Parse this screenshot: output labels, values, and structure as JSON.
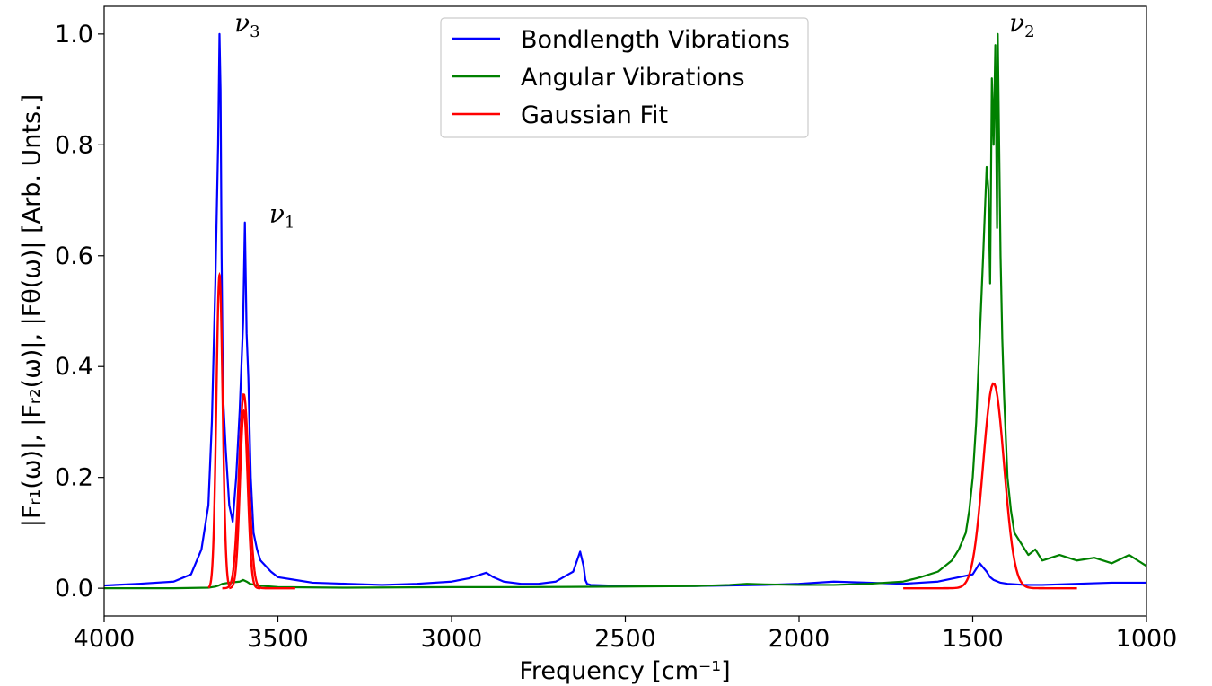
{
  "chart_data": {
    "type": "line",
    "xlabel": "Frequency [cm⁻¹]",
    "ylabel": "|Fᵣ₁(ω)|, |Fᵣ₂(ω)|, |Fθ(ω)|  [Arb. Unts.]",
    "xlim": [
      4000,
      1000
    ],
    "ylim": [
      -0.05,
      1.05
    ],
    "x_reversed": true,
    "x_ticks": [
      "4000",
      "3500",
      "3000",
      "2500",
      "2000",
      "1500",
      "1000"
    ],
    "y_ticks": [
      "0.0",
      "0.2",
      "0.4",
      "0.6",
      "0.8",
      "1.0"
    ],
    "grid": false,
    "legend_position": "top-center",
    "series": [
      {
        "name": "Bondlength Vibrations",
        "color": "#0000ff",
        "x": [
          4000,
          3900,
          3800,
          3750,
          3720,
          3700,
          3690,
          3680,
          3672,
          3668,
          3665,
          3662,
          3658,
          3650,
          3640,
          3630,
          3620,
          3610,
          3600,
          3595,
          3590,
          3585,
          3578,
          3570,
          3560,
          3550,
          3520,
          3500,
          3450,
          3400,
          3300,
          3200,
          3100,
          3000,
          2950,
          2900,
          2880,
          2850,
          2800,
          2750,
          2700,
          2650,
          2630,
          2620,
          2615,
          2610,
          2600,
          2550,
          2500,
          2400,
          2300,
          2200,
          2100,
          2000,
          1900,
          1800,
          1700,
          1600,
          1500,
          1480,
          1460,
          1450,
          1440,
          1420,
          1400,
          1350,
          1300,
          1200,
          1100,
          1000
        ],
        "y": [
          0.005,
          0.008,
          0.012,
          0.025,
          0.07,
          0.15,
          0.3,
          0.55,
          0.8,
          1.0,
          0.9,
          0.6,
          0.35,
          0.25,
          0.15,
          0.12,
          0.2,
          0.32,
          0.48,
          0.66,
          0.46,
          0.38,
          0.2,
          0.1,
          0.07,
          0.05,
          0.03,
          0.02,
          0.015,
          0.01,
          0.008,
          0.006,
          0.008,
          0.012,
          0.018,
          0.028,
          0.02,
          0.012,
          0.008,
          0.008,
          0.012,
          0.03,
          0.066,
          0.04,
          0.015,
          0.008,
          0.006,
          0.005,
          0.004,
          0.004,
          0.004,
          0.005,
          0.006,
          0.008,
          0.012,
          0.01,
          0.008,
          0.012,
          0.025,
          0.045,
          0.03,
          0.02,
          0.015,
          0.01,
          0.008,
          0.006,
          0.006,
          0.008,
          0.01,
          0.01
        ]
      },
      {
        "name": "Angular Vibrations",
        "color": "#008000",
        "x": [
          4000,
          3800,
          3700,
          3680,
          3670,
          3660,
          3640,
          3610,
          3600,
          3590,
          3580,
          3560,
          3500,
          3300,
          3000,
          2800,
          2500,
          2300,
          2200,
          2150,
          2100,
          2000,
          1900,
          1800,
          1700,
          1650,
          1600,
          1560,
          1540,
          1520,
          1510,
          1500,
          1490,
          1480,
          1470,
          1460,
          1455,
          1450,
          1445,
          1440,
          1435,
          1430,
          1428,
          1425,
          1420,
          1415,
          1410,
          1400,
          1390,
          1380,
          1360,
          1340,
          1320,
          1300,
          1250,
          1200,
          1150,
          1100,
          1050,
          1000
        ],
        "y": [
          0.0,
          0.0,
          0.001,
          0.003,
          0.005,
          0.008,
          0.01,
          0.012,
          0.015,
          0.012,
          0.008,
          0.005,
          0.002,
          0.001,
          0.002,
          0.002,
          0.003,
          0.004,
          0.006,
          0.008,
          0.007,
          0.006,
          0.006,
          0.008,
          0.012,
          0.02,
          0.03,
          0.05,
          0.07,
          0.1,
          0.14,
          0.2,
          0.3,
          0.45,
          0.6,
          0.76,
          0.72,
          0.55,
          0.92,
          0.8,
          0.98,
          0.65,
          1.0,
          0.85,
          0.6,
          0.45,
          0.35,
          0.2,
          0.14,
          0.1,
          0.08,
          0.06,
          0.07,
          0.05,
          0.06,
          0.05,
          0.055,
          0.045,
          0.06,
          0.04
        ]
      },
      {
        "name": "Gaussian Fit",
        "color": "#ff0000",
        "peaks": [
          {
            "center": 3668,
            "amplitude": 0.565,
            "sigma": 9,
            "x_from": 3700,
            "x_to": 3640
          },
          {
            "center": 3598,
            "amplitude": 0.35,
            "sigma": 14,
            "x_from": 3660,
            "x_to": 3450
          },
          {
            "center": 3598,
            "amplitude": 0.32,
            "sigma": 11,
            "x_from": 3640,
            "x_to": 3550
          },
          {
            "center": 1440,
            "amplitude": 0.37,
            "sigma": 30,
            "x_from": 1700,
            "x_to": 1200
          }
        ]
      }
    ],
    "annotations": [
      {
        "symbol": "ν",
        "sub": "3",
        "x": 3625,
        "y": 1.005
      },
      {
        "symbol": "ν",
        "sub": "1",
        "x": 3525,
        "y": 0.66
      },
      {
        "symbol": "ν",
        "sub": "2",
        "x": 1395,
        "y": 1.005
      }
    ]
  }
}
